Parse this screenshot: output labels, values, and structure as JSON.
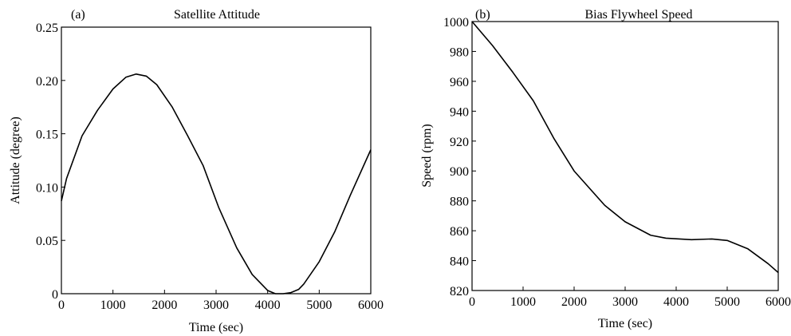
{
  "chart_data": [
    {
      "type": "line",
      "panel_label": "(a)",
      "title": "Satellite Attitude",
      "xlabel": "Time (sec)",
      "ylabel": "Attitude (degree)",
      "xlim": [
        0,
        6000
      ],
      "ylim": [
        0,
        0.25
      ],
      "xticks": [
        0,
        1000,
        2000,
        3000,
        4000,
        5000,
        6000
      ],
      "xtick_labels": [
        "0",
        "1000",
        "2000",
        "3000",
        "4000",
        "5000",
        "6000"
      ],
      "yticks": [
        0,
        0.05,
        0.1,
        0.15,
        0.2,
        0.25
      ],
      "ytick_labels": [
        "0",
        "0.05",
        "0.10",
        "0.15",
        "0.20",
        "0.25"
      ],
      "grid": false,
      "series": [
        {
          "x": [
            0,
            100,
            400,
            700,
            1000,
            1250,
            1450,
            1650,
            1850,
            2150,
            2450,
            2750,
            3050,
            3400,
            3700,
            4000,
            4150,
            4300,
            4450,
            4600,
            4700,
            5000,
            5300,
            5600,
            6000
          ],
          "y": [
            0.087,
            0.108,
            0.148,
            0.172,
            0.192,
            0.203,
            0.206,
            0.204,
            0.196,
            0.175,
            0.148,
            0.12,
            0.081,
            0.043,
            0.018,
            0.003,
            0.0,
            0.0,
            0.001,
            0.004,
            0.009,
            0.03,
            0.058,
            0.092,
            0.135
          ],
          "color": "#000000"
        }
      ]
    },
    {
      "type": "line",
      "panel_label": "(b)",
      "title": "Bias Flywheel Speed",
      "xlabel": "Time (sec)",
      "ylabel": "Speed (rpm)",
      "xlim": [
        0,
        6000
      ],
      "ylim": [
        820,
        1000
      ],
      "xticks": [
        0,
        1000,
        2000,
        3000,
        4000,
        5000,
        6000
      ],
      "xtick_labels": [
        "0",
        "1000",
        "2000",
        "3000",
        "4000",
        "5000",
        "6000"
      ],
      "yticks": [
        820,
        840,
        860,
        880,
        900,
        920,
        940,
        960,
        980,
        1000
      ],
      "ytick_labels": [
        "820",
        "840",
        "860",
        "880",
        "900",
        "920",
        "940",
        "960",
        "980",
        "1000"
      ],
      "grid": false,
      "series": [
        {
          "x": [
            0,
            400,
            800,
            1200,
            1600,
            2000,
            2600,
            3000,
            3500,
            3800,
            4300,
            4700,
            5000,
            5400,
            5800,
            6000
          ],
          "y": [
            1000,
            984,
            966,
            947,
            922,
            900,
            877,
            866,
            857,
            855,
            854,
            854.5,
            853.5,
            848,
            838,
            832
          ],
          "color": "#000000"
        }
      ]
    }
  ]
}
